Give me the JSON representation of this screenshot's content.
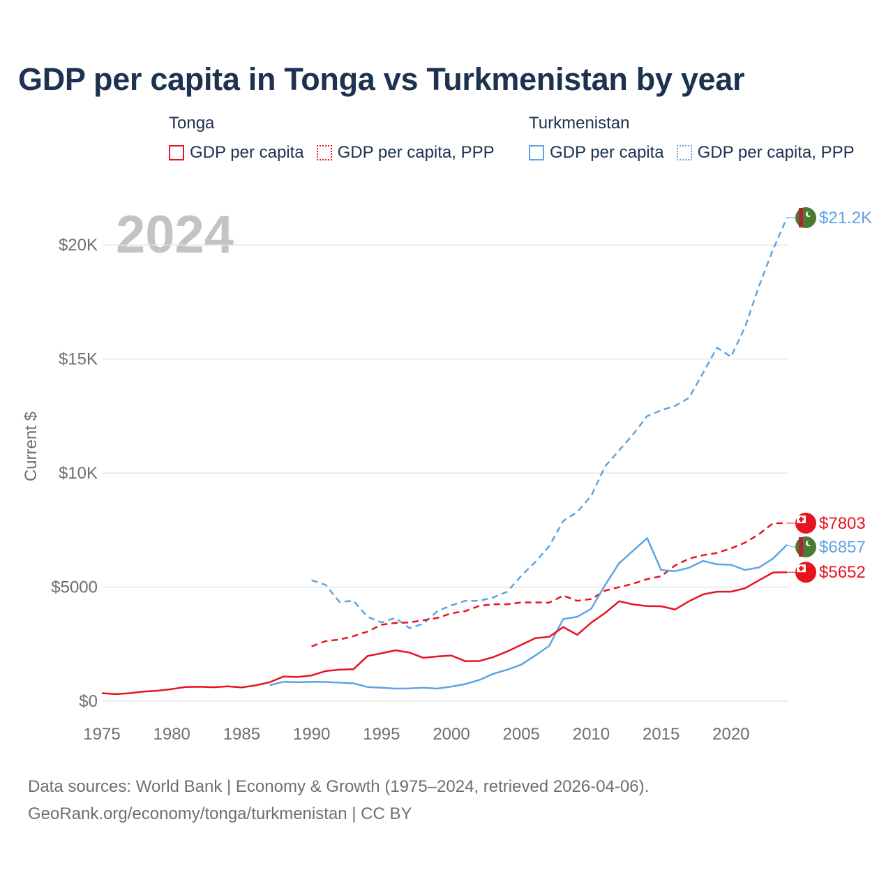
{
  "title": "GDP per capita in Tonga vs Turkmenistan by year",
  "legend": {
    "groups": [
      {
        "name": "Tonga",
        "color": "#e8131f",
        "items": [
          {
            "label": "GDP per capita",
            "style": "solid"
          },
          {
            "label": "GDP per capita, PPP",
            "style": "dotted"
          }
        ]
      },
      {
        "name": "Turkmenistan",
        "color": "#5ea4e3",
        "items": [
          {
            "label": "GDP per capita",
            "style": "solid"
          },
          {
            "label": "GDP per capita, PPP",
            "style": "dotted"
          }
        ]
      }
    ]
  },
  "footer": {
    "line1": "Data sources: World Bank | Economy & Growth (1975–2024, retrieved 2026-04-06).",
    "line2": "GeoRank.org/economy/tonga/turkmenistan | CC BY"
  },
  "chart_data": {
    "type": "line",
    "title": "GDP per capita in Tonga vs Turkmenistan by year",
    "year_watermark": "2024",
    "xlabel": "",
    "ylabel": "Current $",
    "xlim": [
      1975,
      2024
    ],
    "ylim": [
      0,
      21200
    ],
    "x_ticks": [
      1975,
      1980,
      1985,
      1990,
      1995,
      2000,
      2005,
      2010,
      2015,
      2020
    ],
    "y_ticks": [
      {
        "value": 0,
        "label": "$0"
      },
      {
        "value": 5000,
        "label": "$5000"
      },
      {
        "value": 10000,
        "label": "$10K"
      },
      {
        "value": 15000,
        "label": "$15K"
      },
      {
        "value": 20000,
        "label": "$20K"
      }
    ],
    "grid": true,
    "series": [
      {
        "name": "Turkmenistan GDP per capita, PPP",
        "country": "Turkmenistan",
        "color": "#5ea4e3",
        "dash": "dashed",
        "x": [
          1990,
          1991,
          1992,
          1993,
          1994,
          1995,
          1996,
          1997,
          1998,
          1999,
          2000,
          2001,
          2002,
          2003,
          2004,
          2005,
          2006,
          2007,
          2008,
          2009,
          2010,
          2011,
          2012,
          2013,
          2014,
          2015,
          2016,
          2017,
          2018,
          2019,
          2020,
          2021,
          2022,
          2023,
          2024
        ],
        "y": [
          5300,
          5100,
          4350,
          4400,
          3700,
          3450,
          3650,
          3200,
          3400,
          3950,
          4200,
          4400,
          4400,
          4550,
          4800,
          5500,
          6100,
          6800,
          7900,
          8300,
          9000,
          10300,
          11000,
          11700,
          12500,
          12750,
          12950,
          13300,
          14400,
          15500,
          15100,
          16400,
          18200,
          19800,
          21200
        ],
        "end_label": "$21.2K"
      },
      {
        "name": "Tonga GDP per capita, PPP",
        "country": "Tonga",
        "color": "#e8131f",
        "dash": "dashed",
        "x": [
          1990,
          1991,
          1992,
          1993,
          1994,
          1995,
          1996,
          1997,
          1998,
          1999,
          2000,
          2001,
          2002,
          2003,
          2004,
          2005,
          2006,
          2007,
          2008,
          2009,
          2010,
          2011,
          2012,
          2013,
          2014,
          2015,
          2016,
          2017,
          2018,
          2019,
          2020,
          2021,
          2022,
          2023,
          2024
        ],
        "y": [
          2400,
          2630,
          2700,
          2850,
          3050,
          3350,
          3430,
          3450,
          3550,
          3650,
          3850,
          3950,
          4180,
          4250,
          4250,
          4330,
          4330,
          4320,
          4630,
          4400,
          4480,
          4850,
          5000,
          5150,
          5350,
          5480,
          5950,
          6250,
          6400,
          6500,
          6700,
          6950,
          7320,
          7800,
          7803
        ],
        "end_label": "$7803"
      },
      {
        "name": "Turkmenistan GDP per capita",
        "country": "Turkmenistan",
        "color": "#5ea4e3",
        "dash": "solid",
        "x": [
          1987,
          1988,
          1989,
          1990,
          1991,
          1992,
          1993,
          1994,
          1995,
          1996,
          1997,
          1998,
          1999,
          2000,
          2001,
          2002,
          2003,
          2004,
          2005,
          2006,
          2007,
          2008,
          2009,
          2010,
          2011,
          2012,
          2013,
          2014,
          2015,
          2016,
          2017,
          2018,
          2019,
          2020,
          2021,
          2022,
          2023,
          2024
        ],
        "y": [
          700,
          850,
          830,
          850,
          840,
          810,
          780,
          620,
          590,
          550,
          560,
          590,
          550,
          640,
          750,
          930,
          1200,
          1380,
          1600,
          2000,
          2430,
          3600,
          3700,
          4050,
          5100,
          6050,
          6600,
          7150,
          5750,
          5700,
          5850,
          6150,
          6000,
          5980,
          5750,
          5860,
          6250,
          6857
        ],
        "end_label": "$6857"
      },
      {
        "name": "Tonga GDP per capita",
        "country": "Tonga",
        "color": "#e8131f",
        "dash": "solid",
        "x": [
          1975,
          1976,
          1977,
          1978,
          1979,
          1980,
          1981,
          1982,
          1983,
          1984,
          1985,
          1986,
          1987,
          1988,
          1989,
          1990,
          1991,
          1992,
          1993,
          1994,
          1995,
          1996,
          1997,
          1998,
          1999,
          2000,
          2001,
          2002,
          2003,
          2004,
          2005,
          2006,
          2007,
          2008,
          2009,
          2010,
          2011,
          2012,
          2013,
          2014,
          2015,
          2016,
          2017,
          2018,
          2019,
          2020,
          2021,
          2022,
          2023,
          2024
        ],
        "y": [
          350,
          310,
          350,
          420,
          460,
          530,
          620,
          630,
          610,
          650,
          600,
          690,
          830,
          1080,
          1060,
          1130,
          1320,
          1380,
          1400,
          1980,
          2100,
          2230,
          2130,
          1900,
          1960,
          2000,
          1750,
          1760,
          1930,
          2180,
          2470,
          2760,
          2820,
          3250,
          2910,
          3440,
          3870,
          4380,
          4240,
          4170,
          4160,
          4020,
          4380,
          4680,
          4800,
          4800,
          4950,
          5300,
          5640,
          5652
        ],
        "end_label": "$5652"
      }
    ]
  }
}
